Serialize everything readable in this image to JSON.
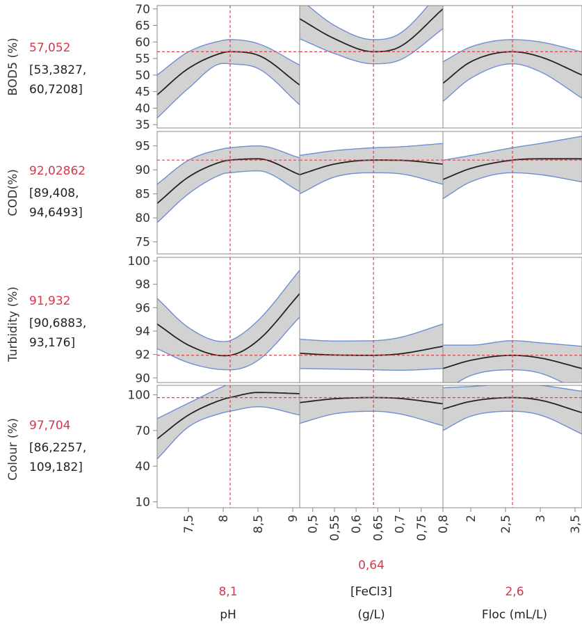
{
  "colors": {
    "band_fill": "#d2d2d2",
    "band_edge": "#6e8ed2",
    "curve": "#222222",
    "crosshair": "#e0414b",
    "frame": "#888888",
    "prediction_text": "#d6374a"
  },
  "chart_data": {
    "type": "line",
    "layout": "prediction-profiler grid",
    "grid": false,
    "factors": [
      {
        "name_lines": [
          "pH"
        ],
        "value_label": "8,1",
        "current": 8.1,
        "range": [
          7.05,
          9.1
        ],
        "ticks": [
          7.5,
          8,
          8.5,
          9
        ],
        "tick_labels": [
          "7,5",
          "8",
          "8,5",
          "9"
        ]
      },
      {
        "name_lines": [
          "[FeCl3]",
          "(g/L)"
        ],
        "value_label": "0,64",
        "current": 0.64,
        "range": [
          0.47,
          0.8
        ],
        "ticks": [
          0.5,
          0.55,
          0.6,
          0.65,
          0.7,
          0.75,
          0.8
        ],
        "tick_labels": [
          "0,5",
          "0,55",
          "0,6",
          "0,65",
          "0,7",
          "0,75",
          "0,8"
        ]
      },
      {
        "name_lines": [
          "Floc (mL/L)"
        ],
        "value_label": "2,6",
        "current": 2.6,
        "range": [
          1.6,
          3.6
        ],
        "ticks": [
          2,
          2.5,
          3,
          3.5
        ],
        "tick_labels": [
          "2",
          "2,5",
          "3",
          "3,5"
        ]
      }
    ],
    "responses": [
      {
        "label": "BOD5 (%)",
        "prediction": "57,052",
        "ci_lines": [
          "[53,3827,",
          "60,7208]"
        ],
        "current_value": 57.052,
        "ylim": [
          34,
          71
        ],
        "ticks": [
          35,
          40,
          45,
          50,
          55,
          60,
          65,
          70
        ],
        "panels": [
          {
            "x": [
              7.05,
              7.5,
              8.0,
              8.1,
              8.5,
              9.1
            ],
            "y": [
              44,
              52,
              56.8,
              57.05,
              56,
              47
            ],
            "lower": [
              37,
              46,
              53.5,
              53.4,
              52,
              41
            ],
            "upper": [
              50,
              57,
              60.5,
              60.7,
              59.5,
              53
            ]
          },
          {
            "x": [
              0.47,
              0.55,
              0.64,
              0.7,
              0.8
            ],
            "y": [
              67,
              61,
              57.05,
              58.5,
              70
            ],
            "lower": [
              61,
              56.5,
              53.4,
              54.5,
              64
            ],
            "upper": [
              73,
              65,
              60.7,
              62.5,
              76
            ]
          },
          {
            "x": [
              1.6,
              2.0,
              2.6,
              3.0,
              3.6
            ],
            "y": [
              47.5,
              54,
              57.05,
              55.5,
              50
            ],
            "lower": [
              42,
              49,
              53.4,
              51,
              43
            ],
            "upper": [
              54,
              58.5,
              60.7,
              60,
              57
            ]
          }
        ]
      },
      {
        "label": "COD(%)",
        "prediction": "92,02862",
        "ci_lines": [
          "[89,408,",
          "94,6493]"
        ],
        "current_value": 92.029,
        "ylim": [
          72.5,
          98
        ],
        "ticks": [
          75,
          80,
          85,
          90,
          95
        ],
        "panels": [
          {
            "x": [
              7.05,
              7.5,
              8.0,
              8.1,
              8.5,
              9.1
            ],
            "y": [
              83,
              88.5,
              91.8,
              92.03,
              92.3,
              89
            ],
            "lower": [
              79,
              85,
              89.2,
              89.4,
              89.8,
              85.5
            ],
            "upper": [
              87,
              92,
              94.4,
              94.6,
              95,
              92.5
            ]
          },
          {
            "x": [
              0.47,
              0.55,
              0.64,
              0.7,
              0.8
            ],
            "y": [
              89,
              91.2,
              92.03,
              92,
              91.2
            ],
            "lower": [
              85,
              88.5,
              89.4,
              89.2,
              87
            ],
            "upper": [
              93,
              94,
              94.6,
              94.8,
              95.5
            ]
          },
          {
            "x": [
              1.6,
              2.0,
              2.6,
              3.0,
              3.6
            ],
            "y": [
              88,
              90.3,
              92.03,
              92.3,
              92.3
            ],
            "lower": [
              84,
              87.5,
              89.4,
              89,
              87.5
            ],
            "upper": [
              92,
              93,
              94.6,
              95.5,
              97
            ]
          }
        ]
      },
      {
        "label": "Turbidity (%)",
        "prediction": "91,932",
        "ci_lines": [
          "[90,6883,",
          "93,176]"
        ],
        "current_value": 91.932,
        "ylim": [
          89.6,
          100.3
        ],
        "ticks": [
          90,
          92,
          94,
          96,
          98,
          100
        ],
        "panels": [
          {
            "x": [
              7.05,
              7.5,
              8.0,
              8.1,
              8.5,
              9.1
            ],
            "y": [
              94.6,
              92.8,
              91.9,
              91.93,
              93.2,
              97.2
            ],
            "lower": [
              92.5,
              91.3,
              90.7,
              90.69,
              91.5,
              95.2
            ],
            "upper": [
              96.8,
              94.3,
              93.1,
              93.18,
              94.9,
              99.2
            ]
          },
          {
            "x": [
              0.47,
              0.55,
              0.64,
              0.7,
              0.8
            ],
            "y": [
              92.1,
              91.95,
              91.93,
              92.05,
              92.7
            ],
            "lower": [
              90.8,
              90.75,
              90.69,
              90.65,
              90.8
            ],
            "upper": [
              93.3,
              93.15,
              93.18,
              93.45,
              94.6
            ]
          },
          {
            "x": [
              1.6,
              2.0,
              2.6,
              3.0,
              3.6
            ],
            "y": [
              90.8,
              91.5,
              91.93,
              91.7,
              90.8
            ],
            "lower": [
              88.8,
              90.2,
              90.69,
              90.4,
              88.8
            ],
            "upper": [
              92.8,
              92.8,
              93.18,
              93.0,
              92.7
            ]
          }
        ]
      },
      {
        "label": "Colour (%)",
        "prediction": "97,704",
        "ci_lines": [
          "[86,2257,",
          "109,182]"
        ],
        "current_value": 97.704,
        "ylim": [
          5,
          108
        ],
        "ticks": [
          10,
          40,
          70,
          100
        ],
        "panels": [
          {
            "x": [
              7.05,
              7.5,
              8.0,
              8.1,
              8.5,
              9.1
            ],
            "y": [
              63,
              83,
              96.3,
              97.7,
              102,
              101
            ],
            "lower": [
              46,
              73,
              85,
              86.2,
              90,
              83
            ],
            "upper": [
              80,
              93,
              107,
              109.2,
              113,
              119
            ]
          },
          {
            "x": [
              0.47,
              0.55,
              0.64,
              0.7,
              0.8
            ],
            "y": [
              93.5,
              96.7,
              97.7,
              97,
              92.5
            ],
            "lower": [
              76,
              84,
              86.2,
              84,
              74
            ],
            "upper": [
              111,
              109,
              109.2,
              110,
              111
            ]
          },
          {
            "x": [
              1.6,
              2.0,
              2.6,
              3.0,
              3.6
            ],
            "y": [
              88,
              94.5,
              97.7,
              95.5,
              85
            ],
            "lower": [
              70,
              82,
              86.2,
              83,
              67
            ],
            "upper": [
              106,
              107,
              109.2,
              108,
              103
            ]
          }
        ]
      }
    ]
  }
}
